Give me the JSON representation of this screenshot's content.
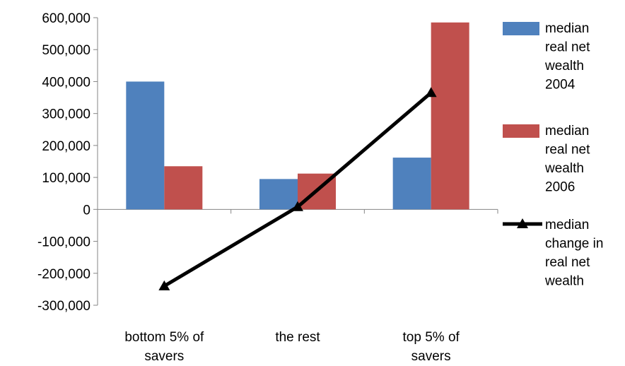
{
  "chart_data": {
    "type": "bar",
    "title": "",
    "xlabel": "",
    "ylabel": "",
    "categories": [
      "bottom 5% of savers",
      "the rest",
      "top 5% of savers"
    ],
    "category_lines": [
      [
        "bottom 5% of",
        "savers"
      ],
      [
        "the rest"
      ],
      [
        "top 5% of",
        "savers"
      ]
    ],
    "ylim": [
      -300000,
      600000
    ],
    "yticks": [
      600000,
      500000,
      400000,
      300000,
      200000,
      100000,
      0,
      -100000,
      -200000,
      -300000
    ],
    "ytick_labels": [
      "600,000",
      "500,000",
      "400,000",
      "300,000",
      "200,000",
      "100,000",
      "0",
      "-100,000",
      "-200,000",
      "-300,000"
    ],
    "grid": false,
    "legend_position": "right",
    "series": [
      {
        "name": "median real net wealth 2004",
        "legend_lines": [
          "median",
          "real net",
          "wealth",
          "2004"
        ],
        "kind": "bar",
        "color": "#4F81BD",
        "values": [
          400000,
          95000,
          162000
        ]
      },
      {
        "name": "median real net wealth 2006",
        "legend_lines": [
          "median",
          "real net",
          "wealth",
          "2006"
        ],
        "kind": "bar",
        "color": "#C0504D",
        "values": [
          135000,
          112000,
          585000
        ]
      },
      {
        "name": "median change in real net wealth",
        "legend_lines": [
          "median",
          "change in",
          "real net",
          "wealth"
        ],
        "kind": "line",
        "marker": "triangle",
        "color": "#000000",
        "values": [
          -240000,
          8000,
          365000
        ]
      }
    ]
  }
}
